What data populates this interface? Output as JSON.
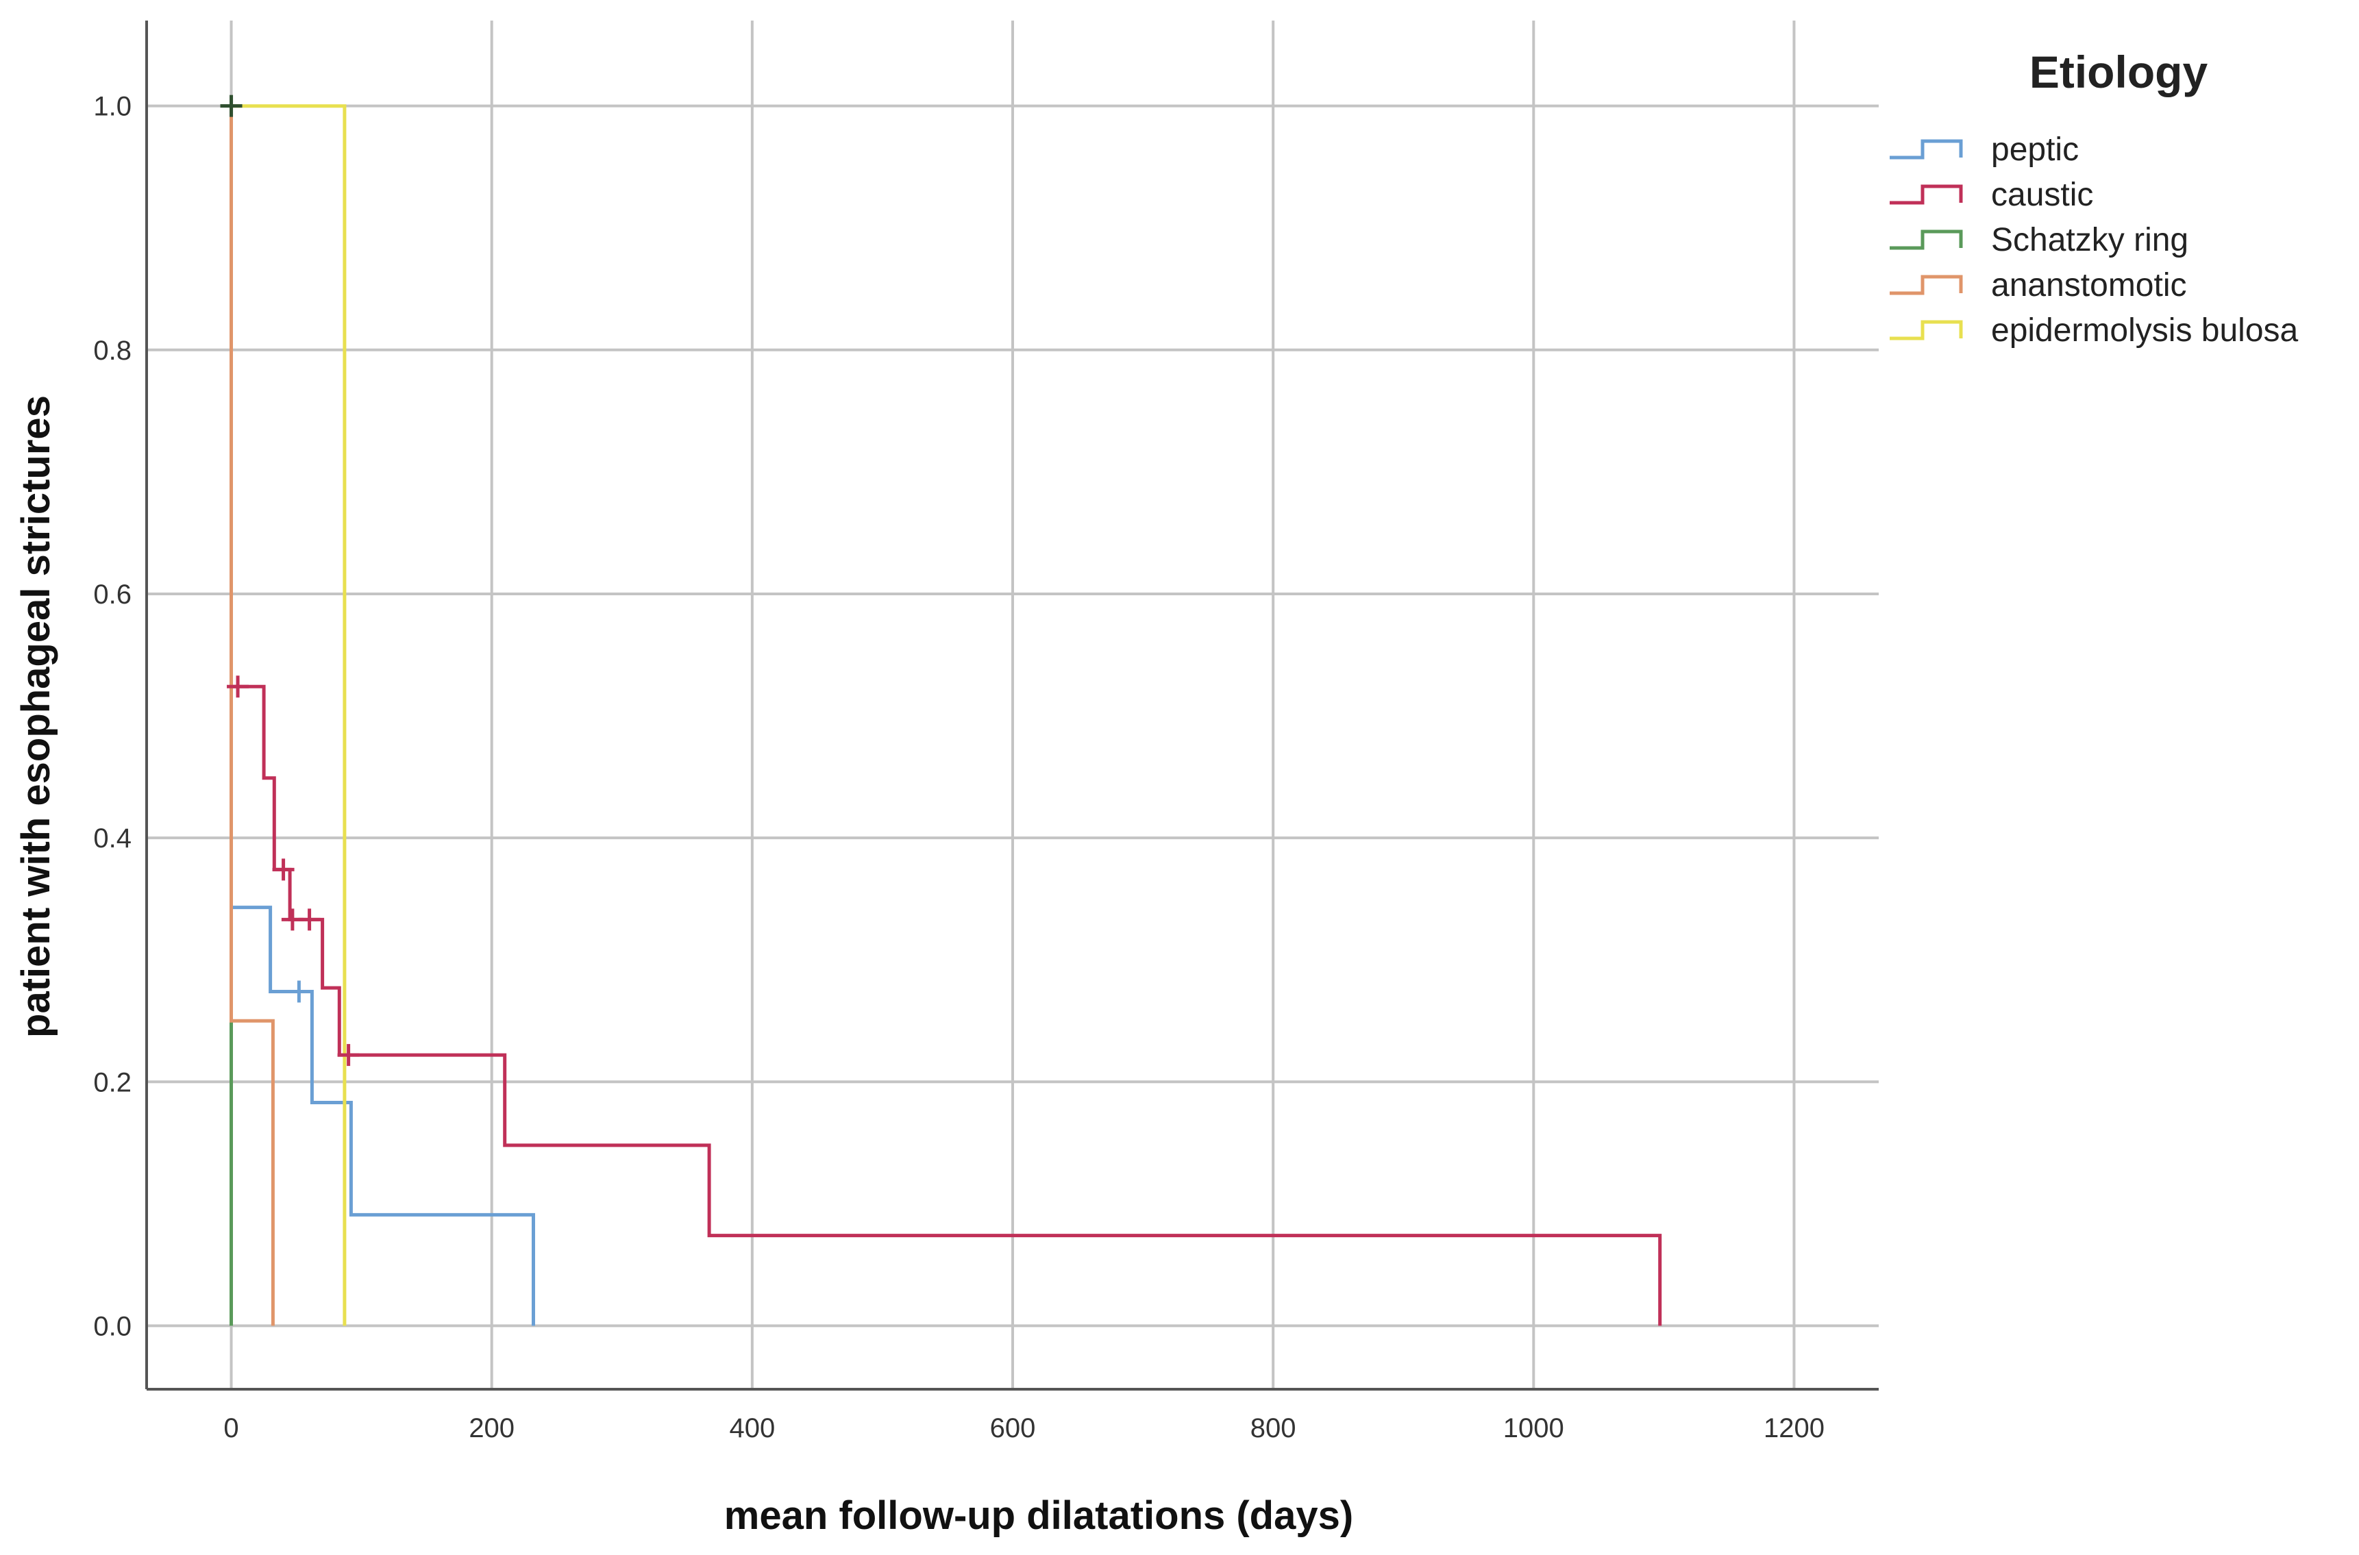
{
  "chart_data": {
    "type": "line",
    "title": "",
    "xlabel": "mean follow-up dilatations (days)",
    "ylabel": "patient with esophageal strictures",
    "xlim": [
      -65,
      1265
    ],
    "ylim": [
      -0.052,
      1.07
    ],
    "x_ticks": [
      0,
      200,
      400,
      600,
      800,
      1000,
      1200
    ],
    "y_ticks": [
      0.0,
      0.2,
      0.4,
      0.6,
      0.8,
      1.0
    ],
    "y_tick_labels": [
      "0.0",
      "0.2",
      "0.4",
      "0.6",
      "0.8",
      "1.0"
    ],
    "grid": true,
    "legend": {
      "title": "Etiology",
      "position": "right"
    },
    "series": [
      {
        "name": "peptic",
        "color": "#6a9fd4",
        "step": true,
        "x": [
          0,
          0,
          30,
          30,
          62,
          62,
          92,
          92,
          232,
          232
        ],
        "y": [
          1.0,
          0.343,
          0.343,
          0.274,
          0.274,
          0.183,
          0.183,
          0.091,
          0.091,
          0.0
        ],
        "censored": [
          {
            "x": 52,
            "y": 0.274
          }
        ]
      },
      {
        "name": "caustic",
        "color": "#c03058",
        "step": true,
        "x": [
          0,
          0,
          25,
          25,
          33,
          33,
          45,
          45,
          70,
          70,
          83,
          83,
          210,
          210,
          367,
          367,
          1097,
          1097
        ],
        "y": [
          1.0,
          0.524,
          0.524,
          0.449,
          0.449,
          0.374,
          0.374,
          0.333,
          0.333,
          0.277,
          0.277,
          0.222,
          0.222,
          0.148,
          0.148,
          0.074,
          0.074,
          0.0
        ],
        "censored": [
          {
            "x": 5,
            "y": 0.524
          },
          {
            "x": 40,
            "y": 0.374
          },
          {
            "x": 47,
            "y": 0.333
          },
          {
            "x": 60,
            "y": 0.333
          },
          {
            "x": 90,
            "y": 0.222
          }
        ]
      },
      {
        "name": "Schatzky ring",
        "color": "#5a9a5a",
        "step": true,
        "x": [
          0,
          0
        ],
        "y": [
          1.0,
          0.0
        ],
        "censored": [
          {
            "x": 0,
            "y": 1.0
          }
        ]
      },
      {
        "name": "ananstomotic",
        "color": "#e0956a",
        "step": true,
        "x": [
          0,
          0,
          32,
          32
        ],
        "y": [
          1.0,
          0.25,
          0.25,
          0.0
        ],
        "censored": []
      },
      {
        "name": "epidermolysis bulosa",
        "color": "#e8e050",
        "step": true,
        "x": [
          0,
          87,
          87
        ],
        "y": [
          1.0,
          1.0,
          0.0
        ],
        "censored": []
      }
    ]
  }
}
